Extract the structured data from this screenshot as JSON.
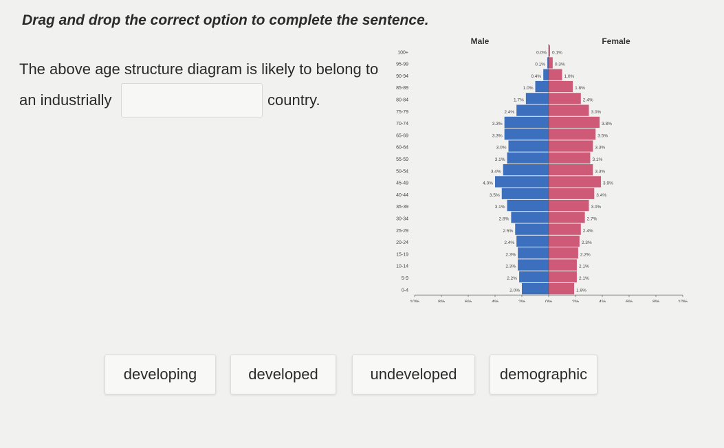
{
  "instruction": "Drag and drop the correct option to complete the sentence.",
  "sentence": {
    "part1": "The above age structure diagram is likely to belong to",
    "part2_start": "an industrially",
    "part2_end": "country."
  },
  "options": [
    "developing",
    "developed",
    "undeveloped",
    "demographic"
  ],
  "chart_data": {
    "type": "bar",
    "subtype": "population-pyramid",
    "title": "",
    "male_label": "Male",
    "female_label": "Female",
    "categories": [
      "100+",
      "95-99",
      "90-94",
      "85-89",
      "80-84",
      "75-79",
      "70-74",
      "65-69",
      "60-64",
      "55-59",
      "50-54",
      "45-49",
      "40-44",
      "35-39",
      "30-34",
      "25-29",
      "20-24",
      "15-19",
      "10-14",
      "5-9",
      "0-4"
    ],
    "series": [
      {
        "name": "Male",
        "values": [
          0.0,
          0.1,
          0.4,
          1.0,
          1.7,
          2.4,
          3.3,
          3.3,
          3.0,
          3.1,
          3.4,
          4.0,
          3.5,
          3.1,
          2.8,
          2.5,
          2.4,
          2.3,
          2.3,
          2.2,
          2.0
        ]
      },
      {
        "name": "Female",
        "values": [
          0.1,
          0.3,
          1.0,
          1.8,
          2.4,
          3.0,
          3.8,
          3.5,
          3.3,
          3.1,
          3.3,
          3.9,
          3.4,
          3.0,
          2.7,
          2.4,
          2.3,
          2.2,
          2.1,
          2.1,
          1.9
        ]
      }
    ],
    "value_labels": {
      "male": [
        "0.0%",
        "0.1%",
        "0.4%",
        "1.0%",
        "1.7%",
        "2.4%",
        "3.3%",
        "3.3%",
        "3.0%",
        "3.1%",
        "3.4%",
        "4.0%",
        "3.5%",
        "3.1%",
        "2.8%",
        "2.5%",
        "2.4%",
        "2.3%",
        "2.3%",
        "2.2%",
        "2.0%"
      ],
      "female": [
        "0.1%",
        "0.3%",
        "1.0%",
        "1.8%",
        "2.4%",
        "3.0%",
        "3.8%",
        "3.5%",
        "3.3%",
        "3.1%",
        "3.3%",
        "3.9%",
        "3.4%",
        "3.0%",
        "2.7%",
        "2.4%",
        "2.3%",
        "2.2%",
        "2.1%",
        "2.1%",
        "1.9%"
      ]
    },
    "x_ticks": [
      "10%",
      "8%",
      "6%",
      "4%",
      "2%",
      "0%",
      "2%",
      "4%",
      "6%",
      "8%",
      "10%"
    ],
    "xlim": [
      -10,
      10
    ],
    "colors": {
      "male": "#3d6fbf",
      "female": "#cf5a78",
      "axis": "#333333"
    }
  }
}
